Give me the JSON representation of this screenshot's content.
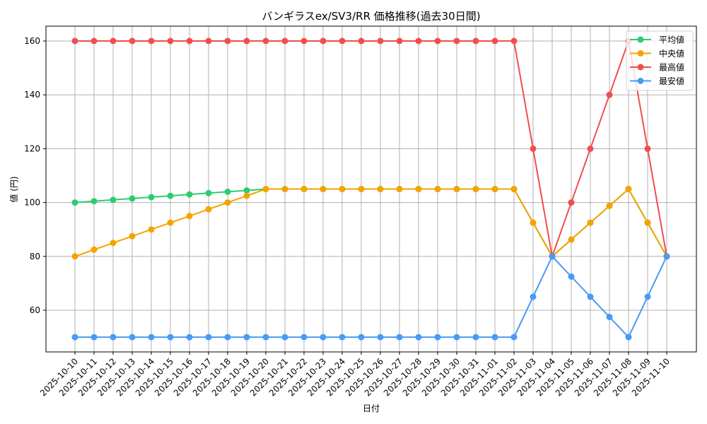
{
  "chart_data": {
    "type": "line",
    "title": "バンギラスex/SV3/RR 価格推移(過去30日間)",
    "xlabel": "日付",
    "ylabel": "値 (円)",
    "ylim": [
      45,
      165
    ],
    "yticks": [
      60,
      80,
      100,
      120,
      140,
      160
    ],
    "grid": true,
    "legend_position": "upper right",
    "x": [
      "2025-10-10",
      "2025-10-11",
      "2025-10-12",
      "2025-10-13",
      "2025-10-14",
      "2025-10-15",
      "2025-10-16",
      "2025-10-17",
      "2025-10-18",
      "2025-10-19",
      "2025-10-20",
      "2025-10-21",
      "2025-10-22",
      "2025-10-23",
      "2025-10-24",
      "2025-10-25",
      "2025-10-26",
      "2025-10-27",
      "2025-10-28",
      "2025-10-29",
      "2025-10-30",
      "2025-10-31",
      "2025-11-01",
      "2025-11-02",
      "2025-11-03",
      "2025-11-04",
      "2025-11-05",
      "2025-11-06",
      "2025-11-07",
      "2025-11-08",
      "2025-11-09",
      "2025-11-10"
    ],
    "series": [
      {
        "name": "平均値",
        "color": "#2ecc71",
        "values": [
          100,
          100.5,
          101,
          101.5,
          102,
          102.5,
          103,
          103.5,
          104,
          104.5,
          105,
          105,
          105,
          105,
          105,
          105,
          105,
          105,
          105,
          105,
          105,
          105,
          105,
          105,
          92.5,
          80,
          86.25,
          92.5,
          98.75,
          105,
          92.5,
          80
        ]
      },
      {
        "name": "中央値",
        "color": "#f5a300",
        "values": [
          80,
          82.5,
          85,
          87.5,
          90,
          92.5,
          95,
          97.5,
          100,
          102.5,
          105,
          105,
          105,
          105,
          105,
          105,
          105,
          105,
          105,
          105,
          105,
          105,
          105,
          105,
          92.5,
          80,
          86.25,
          92.5,
          98.75,
          105,
          92.5,
          80
        ]
      },
      {
        "name": "最高値",
        "color": "#f04e4e",
        "values": [
          160,
          160,
          160,
          160,
          160,
          160,
          160,
          160,
          160,
          160,
          160,
          160,
          160,
          160,
          160,
          160,
          160,
          160,
          160,
          160,
          160,
          160,
          160,
          160,
          120,
          80,
          100,
          120,
          140,
          160,
          120,
          80
        ]
      },
      {
        "name": "最安値",
        "color": "#4a9af5",
        "values": [
          50,
          50,
          50,
          50,
          50,
          50,
          50,
          50,
          50,
          50,
          50,
          50,
          50,
          50,
          50,
          50,
          50,
          50,
          50,
          50,
          50,
          50,
          50,
          50,
          65,
          80,
          72.5,
          65,
          57.5,
          50,
          65,
          80
        ]
      }
    ]
  }
}
